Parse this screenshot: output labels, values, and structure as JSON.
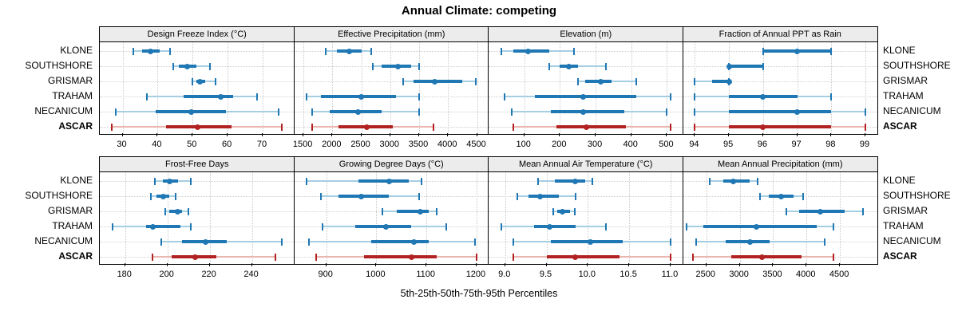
{
  "title": "Annual Climate: competing",
  "caption": "5th-25th-50th-75th-95th Percentiles",
  "percentile_labels": [
    "5th",
    "25th",
    "50th",
    "75th",
    "95th"
  ],
  "sites": [
    "KLONE",
    "SOUTHSHORE",
    "GRISMAR",
    "TRAHAM",
    "NECANICUM",
    "ASCAR"
  ],
  "highlight_site": "ASCAR",
  "colors": {
    "blue": "#1f77b4",
    "blue_light": "#a6cee3",
    "red": "#b22222",
    "red_light": "#e9b7b0",
    "strip_bg": "#ececec",
    "grid": "#c9c9c9",
    "border": "#000000",
    "text": "#000000"
  },
  "chart_data": [
    {
      "type": "dotplot-percentiles",
      "row": 0,
      "col": 0,
      "title": "Design Freeze Index (°C)",
      "xlim": [
        23.5,
        79
      ],
      "tick_values": [
        30,
        40,
        50,
        60,
        70
      ],
      "tick_labels": [
        "30",
        "40",
        "50",
        "60",
        "70"
      ],
      "series": [
        {
          "name": "KLONE",
          "percentiles": [
            33,
            35.5,
            38,
            40.5,
            43.5
          ]
        },
        {
          "name": "SOUTHSHORE",
          "percentiles": [
            44.5,
            46,
            48.5,
            51,
            55
          ]
        },
        {
          "name": "GRISMAR",
          "percentiles": [
            50,
            51,
            52,
            53.5,
            56.5
          ]
        },
        {
          "name": "TRAHAM",
          "percentiles": [
            37,
            47.5,
            58,
            61.5,
            68.5
          ]
        },
        {
          "name": "NECANICUM",
          "percentiles": [
            28,
            39.5,
            49.5,
            59.5,
            74.5
          ]
        },
        {
          "name": "ASCAR",
          "percentiles": [
            27,
            42.5,
            51.5,
            61,
            75.5
          ]
        }
      ]
    },
    {
      "type": "dotplot-percentiles",
      "row": 0,
      "col": 1,
      "title": "Effective Precipitation (mm)",
      "xlim": [
        1340,
        4700
      ],
      "tick_values": [
        1500,
        2000,
        2500,
        3000,
        3500,
        4000,
        4500
      ],
      "tick_labels": [
        "1500",
        "2000",
        "2500",
        "3000",
        "3500",
        "4000",
        "4500"
      ],
      "series": [
        {
          "name": "KLONE",
          "percentiles": [
            1890,
            2080,
            2290,
            2500,
            2670
          ]
        },
        {
          "name": "SOUTHSHORE",
          "percentiles": [
            2700,
            2850,
            3140,
            3360,
            3500
          ]
        },
        {
          "name": "GRISMAR",
          "percentiles": [
            3220,
            3400,
            3770,
            4250,
            4480
          ]
        },
        {
          "name": "TRAHAM",
          "percentiles": [
            1550,
            1800,
            2500,
            3100,
            3500
          ]
        },
        {
          "name": "NECANICUM",
          "percentiles": [
            1650,
            1950,
            2450,
            2850,
            3500
          ]
        },
        {
          "name": "ASCAR",
          "percentiles": [
            1650,
            2100,
            2600,
            3050,
            3750
          ]
        }
      ]
    },
    {
      "type": "dotplot-percentiles",
      "row": 0,
      "col": 2,
      "title": "Elevation (m)",
      "xlim": [
        0,
        545
      ],
      "tick_values": [
        100,
        200,
        300,
        400,
        500
      ],
      "tick_labels": [
        "100",
        "200",
        "300",
        "400",
        "500"
      ],
      "series": [
        {
          "name": "KLONE",
          "percentiles": [
            35,
            70,
            110,
            170,
            240
          ]
        },
        {
          "name": "SOUTHSHORE",
          "percentiles": [
            170,
            200,
            225,
            250,
            330
          ]
        },
        {
          "name": "GRISMAR",
          "percentiles": [
            250,
            270,
            315,
            345,
            415
          ]
        },
        {
          "name": "TRAHAM",
          "percentiles": [
            45,
            130,
            265,
            415,
            510
          ]
        },
        {
          "name": "NECANICUM",
          "percentiles": [
            65,
            175,
            265,
            380,
            500
          ]
        },
        {
          "name": "ASCAR",
          "percentiles": [
            70,
            190,
            275,
            385,
            510
          ]
        }
      ]
    },
    {
      "type": "dotplot-percentiles",
      "row": 0,
      "col": 3,
      "title": "Fraction of Annual PPT as Rain",
      "xlim": [
        93.65,
        99.35
      ],
      "tick_values": [
        94,
        95,
        96,
        97,
        98,
        99
      ],
      "tick_labels": [
        "94",
        "95",
        "96",
        "97",
        "98",
        "99"
      ],
      "series": [
        {
          "name": "KLONE",
          "percentiles": [
            96,
            96,
            97,
            98,
            98
          ]
        },
        {
          "name": "SOUTHSHORE",
          "percentiles": [
            95,
            95,
            95,
            96,
            96
          ]
        },
        {
          "name": "GRISMAR",
          "percentiles": [
            94,
            94.5,
            95,
            95,
            95
          ]
        },
        {
          "name": "TRAHAM",
          "percentiles": [
            94,
            95,
            96,
            97,
            98
          ]
        },
        {
          "name": "NECANICUM",
          "percentiles": [
            94,
            95,
            97,
            98,
            99
          ]
        },
        {
          "name": "ASCAR",
          "percentiles": [
            94,
            95,
            96,
            98,
            99
          ]
        }
      ]
    },
    {
      "type": "dotplot-percentiles",
      "row": 1,
      "col": 0,
      "title": "Frost-Free Days",
      "xlim": [
        168,
        260
      ],
      "tick_values": [
        180,
        200,
        220,
        240
      ],
      "tick_labels": [
        "180",
        "200",
        "220",
        "240"
      ],
      "series": [
        {
          "name": "KLONE",
          "percentiles": [
            194,
            198,
            201,
            205,
            211
          ]
        },
        {
          "name": "SOUTHSHORE",
          "percentiles": [
            192,
            195,
            198,
            201,
            204
          ]
        },
        {
          "name": "GRISMAR",
          "percentiles": [
            199,
            201,
            205,
            207,
            210
          ]
        },
        {
          "name": "TRAHAM",
          "percentiles": [
            174,
            190,
            193,
            206,
            211
          ]
        },
        {
          "name": "NECANICUM",
          "percentiles": [
            197,
            207,
            218,
            228,
            254
          ]
        },
        {
          "name": "ASCAR",
          "percentiles": [
            193,
            202,
            213,
            223,
            251
          ]
        }
      ]
    },
    {
      "type": "dotplot-percentiles",
      "row": 1,
      "col": 1,
      "title": "Growing Degree Days (°C)",
      "xlim": [
        836,
        1224
      ],
      "tick_values": [
        900,
        1000,
        1100,
        1200
      ],
      "tick_labels": [
        "900",
        "1000",
        "1100",
        "1200"
      ],
      "series": [
        {
          "name": "KLONE",
          "percentiles": [
            860,
            965,
            1025,
            1065,
            1090
          ]
        },
        {
          "name": "SOUTHSHORE",
          "percentiles": [
            890,
            925,
            970,
            1025,
            1085
          ]
        },
        {
          "name": "GRISMAR",
          "percentiles": [
            1012,
            1040,
            1087,
            1105,
            1120
          ]
        },
        {
          "name": "TRAHAM",
          "percentiles": [
            892,
            958,
            1020,
            1070,
            1140
          ]
        },
        {
          "name": "NECANICUM",
          "percentiles": [
            865,
            990,
            1075,
            1105,
            1197
          ]
        },
        {
          "name": "ASCAR",
          "percentiles": [
            880,
            975,
            1070,
            1120,
            1200
          ]
        }
      ]
    },
    {
      "type": "dotplot-percentiles",
      "row": 1,
      "col": 2,
      "title": "Mean Annual Air Temperature (°C)",
      "xlim": [
        8.8,
        11.15
      ],
      "tick_values": [
        9.0,
        9.5,
        10.0,
        10.5,
        11.0
      ],
      "tick_labels": [
        "9.0",
        "9.5",
        "10.0",
        "10.5",
        "11.0"
      ],
      "series": [
        {
          "name": "KLONE",
          "percentiles": [
            9.4,
            9.6,
            9.85,
            9.97,
            10.05
          ]
        },
        {
          "name": "SOUTHSHORE",
          "percentiles": [
            9.15,
            9.28,
            9.42,
            9.65,
            9.85
          ]
        },
        {
          "name": "GRISMAR",
          "percentiles": [
            9.58,
            9.63,
            9.69,
            9.78,
            9.84
          ]
        },
        {
          "name": "TRAHAM",
          "percentiles": [
            8.95,
            9.35,
            9.54,
            9.85,
            10.22
          ]
        },
        {
          "name": "NECANICUM",
          "percentiles": [
            9.1,
            9.55,
            10.03,
            10.42,
            11.0
          ]
        },
        {
          "name": "ASCAR",
          "percentiles": [
            9.1,
            9.5,
            9.85,
            10.38,
            11.0
          ]
        }
      ]
    },
    {
      "type": "dotplot-percentiles",
      "row": 1,
      "col": 3,
      "title": "Mean Annual Precipitation (mm)",
      "xlim": [
        2150,
        5060
      ],
      "tick_values": [
        2500,
        3000,
        3500,
        4000,
        4500
      ],
      "tick_labels": [
        "2500",
        "3000",
        "3500",
        "4000",
        "4500"
      ],
      "series": [
        {
          "name": "KLONE",
          "percentiles": [
            2550,
            2750,
            2900,
            3150,
            3270
          ]
        },
        {
          "name": "SOUTHSHORE",
          "percentiles": [
            3300,
            3430,
            3620,
            3800,
            3950
          ]
        },
        {
          "name": "GRISMAR",
          "percentiles": [
            3700,
            3890,
            4200,
            4570,
            4850
          ]
        },
        {
          "name": "TRAHAM",
          "percentiles": [
            2200,
            2450,
            3250,
            4150,
            4400
          ]
        },
        {
          "name": "NECANICUM",
          "percentiles": [
            2350,
            2790,
            3150,
            3450,
            4270
          ]
        },
        {
          "name": "ASCAR",
          "percentiles": [
            2300,
            2870,
            3330,
            3930,
            4400
          ]
        }
      ]
    }
  ]
}
